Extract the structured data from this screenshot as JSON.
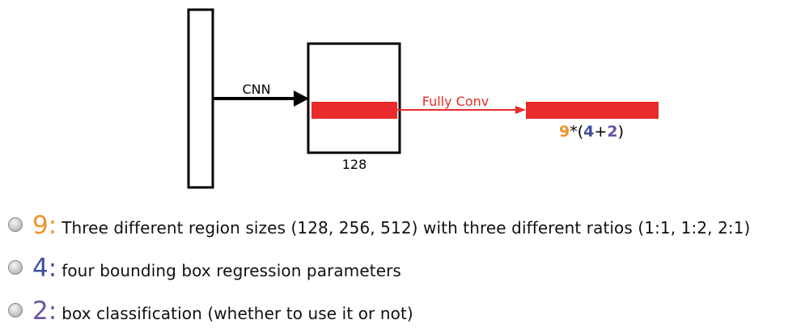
{
  "colors": {
    "orange": "#f0932b",
    "blue": "#3e4f9c",
    "purple": "#6a52a3",
    "red": "#ea2b2b",
    "black": "#000000"
  },
  "diagram": {
    "cnn_label": "CNN",
    "feature_size_label": "128",
    "fully_conv_label": "Fully Conv",
    "formula": {
      "n9": "9",
      "op1": "*(",
      "n4": "4",
      "op2": "+",
      "n2": "2",
      "op3": ")"
    }
  },
  "bullets": [
    {
      "number": "9",
      "colon": ":",
      "text": "Three different region sizes (128, 256, 512) with three different ratios (1:1, 1:2, 2:1)"
    },
    {
      "number": "4",
      "colon": ":",
      "text": "four bounding box regression parameters"
    },
    {
      "number": "2",
      "colon": ":",
      "text": "box classification (whether to use it or not)"
    }
  ]
}
